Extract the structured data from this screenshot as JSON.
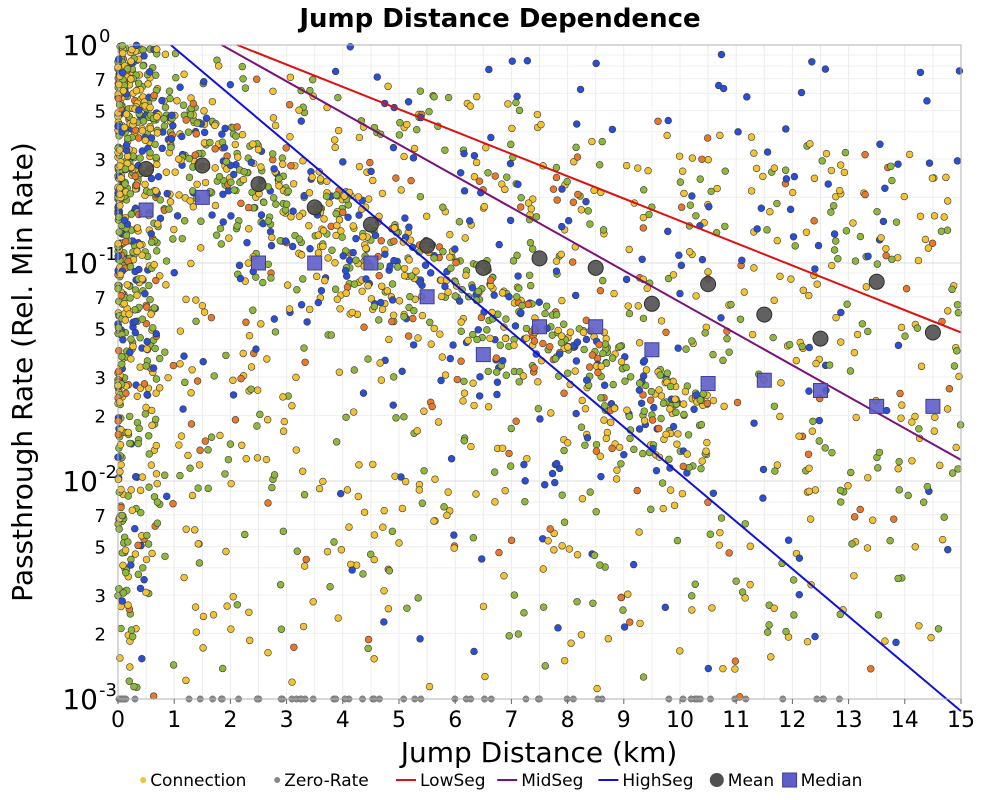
{
  "chart_data": {
    "type": "scatter",
    "title": "Jump Distance Dependence",
    "xlabel": "Jump Distance (km)",
    "ylabel": "Passthrough Rate (Rel. Min Rate)",
    "xlim": [
      0,
      15
    ],
    "ylim": [
      0.001,
      1
    ],
    "yscale": "log",
    "grid": true,
    "legend_position": "bottom",
    "x_ticks": [
      "0",
      "1",
      "2",
      "3",
      "4",
      "5",
      "6",
      "7",
      "8",
      "9",
      "10",
      "11",
      "12",
      "13",
      "14",
      "15"
    ],
    "y_major_ticks": [
      {
        "value": 0.001,
        "base": "10",
        "exp": "-3"
      },
      {
        "value": 0.01,
        "base": "10",
        "exp": "-2"
      },
      {
        "value": 0.1,
        "base": "10",
        "exp": "-1"
      },
      {
        "value": 1,
        "base": "10",
        "exp": "0"
      }
    ],
    "y_minor_labels": [
      "2",
      "3",
      "5",
      "7"
    ],
    "colors": {
      "connection_yellow": "#f2c230",
      "connection_green": "#8fb83a",
      "connection_blue": "#2a4fd6",
      "connection_orange": "#e8792a",
      "zero_rate": "#888888",
      "lowseg": "#e01010",
      "midseg": "#7a117a",
      "highseg": "#1010e0",
      "mean": "#505050",
      "median": "#5e5ec8"
    },
    "series": [
      {
        "name": "LowSeg",
        "type": "line",
        "x": [
          0,
          15
        ],
        "y": [
          1.65,
          0.048
        ]
      },
      {
        "name": "MidSeg",
        "type": "line",
        "x": [
          0,
          15
        ],
        "y": [
          1.85,
          0.0125
        ]
      },
      {
        "name": "HighSeg",
        "type": "line",
        "x": [
          0,
          15
        ],
        "y": [
          1.6,
          0.00088
        ]
      },
      {
        "name": "Mean",
        "type": "scatter",
        "x": [
          0.5,
          1.5,
          2.5,
          3.5,
          4.5,
          5.5,
          6.5,
          7.5,
          8.5,
          9.5,
          10.5,
          11.5,
          12.5,
          13.5,
          14.5
        ],
        "y": [
          0.27,
          0.28,
          0.23,
          0.18,
          0.15,
          0.12,
          0.095,
          0.105,
          0.095,
          0.065,
          0.08,
          0.058,
          0.045,
          0.082,
          0.048
        ]
      },
      {
        "name": "Median",
        "type": "scatter",
        "x": [
          0.5,
          1.5,
          2.5,
          3.5,
          4.5,
          5.5,
          6.5,
          7.5,
          8.5,
          9.5,
          10.5,
          11.5,
          12.5,
          13.5,
          14.5
        ],
        "y": [
          0.175,
          0.2,
          0.1,
          0.1,
          0.1,
          0.07,
          0.038,
          0.051,
          0.051,
          0.04,
          0.028,
          0.029,
          0.026,
          0.022,
          0.022
        ]
      }
    ],
    "legend": [
      {
        "name": "Connection",
        "kind": "dot",
        "color": "#f2c230"
      },
      {
        "name": "Zero-Rate",
        "kind": "dot",
        "color": "#888888"
      },
      {
        "name": "LowSeg",
        "kind": "line",
        "color": "#e01010"
      },
      {
        "name": "MidSeg",
        "kind": "line",
        "color": "#7a117a"
      },
      {
        "name": "HighSeg",
        "kind": "line",
        "color": "#1010e0"
      },
      {
        "name": "Mean",
        "kind": "circle",
        "color": "#505050"
      },
      {
        "name": "Median",
        "kind": "square",
        "color": "#5e5ec8"
      }
    ]
  }
}
